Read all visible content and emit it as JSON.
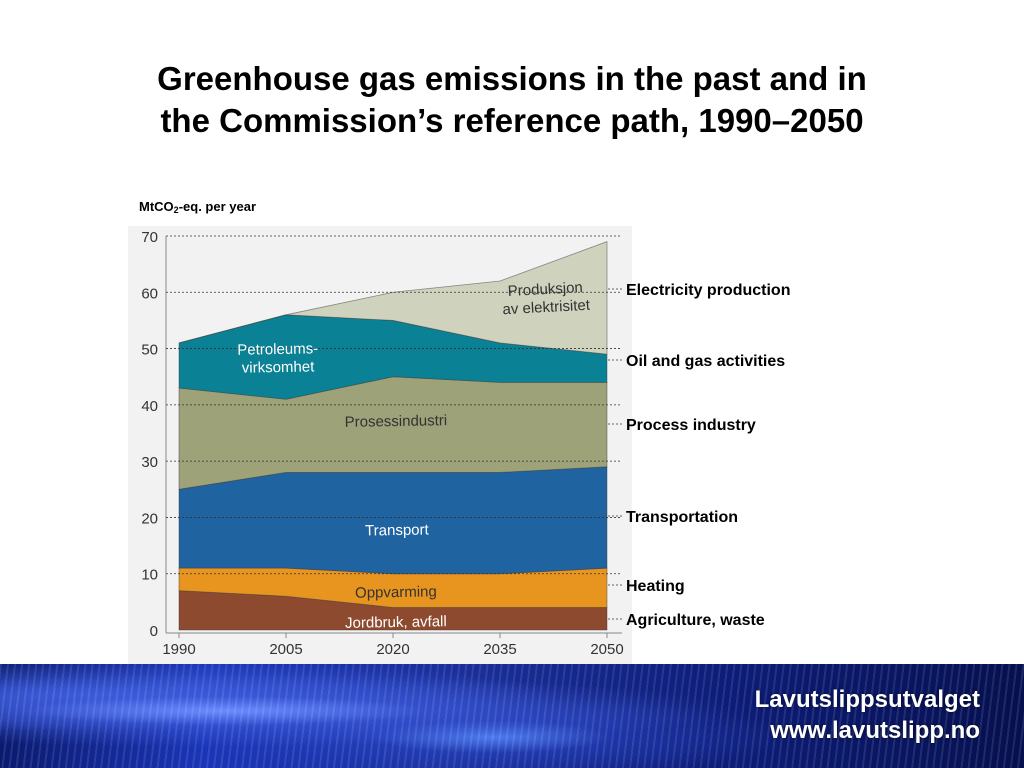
{
  "slide": {
    "title_line1": "Greenhouse gas emissions in the past and in",
    "title_line2": "the Commission’s reference path, 1990–2050"
  },
  "footer": {
    "organization": "Lavutslippsutvalget",
    "website": "www.lavutslipp.no"
  },
  "chart_data": {
    "type": "area",
    "stacked": true,
    "title": "",
    "ylabel_main": "MtCO",
    "ylabel_sub": "2",
    "ylabel_rest": "-eq. per year",
    "xlabel": "",
    "x": [
      1990,
      2005,
      2020,
      2035,
      2050
    ],
    "x_ticks": [
      "1990",
      "2005",
      "2020",
      "2035",
      "2050"
    ],
    "ylim": [
      0,
      70
    ],
    "y_ticks": [
      "0",
      "10",
      "20",
      "30",
      "40",
      "50",
      "60",
      "70"
    ],
    "grid": "horizontal-dashed",
    "series": [
      {
        "name": "Jordbruk, avfall",
        "legend": "Agriculture, waste",
        "color": "#8e4a2f",
        "values": [
          7,
          6,
          4,
          4,
          4
        ]
      },
      {
        "name": "Oppvarming",
        "legend": "Heating",
        "color": "#e8951f",
        "values": [
          4,
          5,
          6,
          6,
          7
        ]
      },
      {
        "name": "Transport",
        "legend": "Transportation",
        "color": "#1f64a0",
        "values": [
          14,
          17,
          18,
          18,
          18
        ]
      },
      {
        "name": "Prosessindustri",
        "legend": "Process industry",
        "color": "#9ea279",
        "values": [
          18,
          13,
          17,
          16,
          15
        ]
      },
      {
        "name": "Petroleums-\nvirksomhet",
        "legend": "Oil and gas activities",
        "color": "#0a8195",
        "values": [
          8,
          15,
          10,
          7,
          5
        ]
      },
      {
        "name": "Produksjon\nav elektrisitet",
        "legend": "Electricity production",
        "color": "#cfd2bd",
        "values": [
          0,
          0,
          5,
          11,
          20
        ]
      }
    ]
  }
}
